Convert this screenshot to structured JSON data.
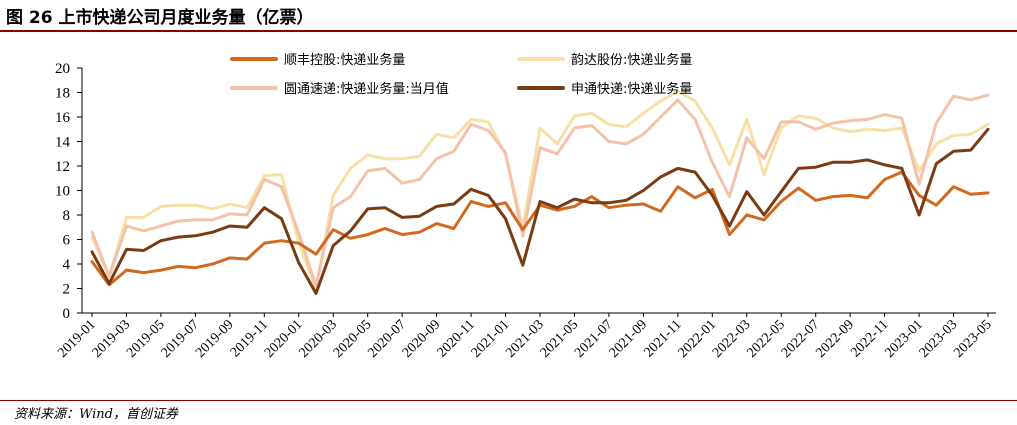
{
  "header": {
    "title": "图 26 上市快递公司月度业务量（亿票）"
  },
  "footer": {
    "source": "资料来源：Wind，首创证券"
  },
  "colors": {
    "rule": "#8b0000",
    "axis": "#000000"
  },
  "chart_data": {
    "type": "line",
    "title": "",
    "xlabel": "",
    "ylabel": "",
    "ylim": [
      0,
      20
    ],
    "yticks": [
      0,
      2,
      4,
      6,
      8,
      10,
      12,
      14,
      16,
      18,
      20
    ],
    "grid": false,
    "legend_position": "top",
    "x": [
      "2019-01",
      "2019-02",
      "2019-03",
      "2019-04",
      "2019-05",
      "2019-06",
      "2019-07",
      "2019-08",
      "2019-09",
      "2019-10",
      "2019-11",
      "2019-12",
      "2020-01",
      "2020-02",
      "2020-03",
      "2020-04",
      "2020-05",
      "2020-06",
      "2020-07",
      "2020-08",
      "2020-09",
      "2020-10",
      "2020-11",
      "2020-12",
      "2021-01",
      "2021-02",
      "2021-03",
      "2021-04",
      "2021-05",
      "2021-06",
      "2021-07",
      "2021-08",
      "2021-09",
      "2021-10",
      "2021-11",
      "2021-12",
      "2022-01",
      "2022-02",
      "2022-03",
      "2022-04",
      "2022-05",
      "2022-06",
      "2022-07",
      "2022-08",
      "2022-09",
      "2022-10",
      "2022-11",
      "2022-12",
      "2023-01",
      "2023-02",
      "2023-03",
      "2023-04",
      "2023-05"
    ],
    "xtick_labels": [
      "2019-01",
      "2019-03",
      "2019-05",
      "2019-07",
      "2019-09",
      "2019-11",
      "2020-01",
      "2020-03",
      "2020-05",
      "2020-07",
      "2020-09",
      "2020-11",
      "2021-01",
      "2021-03",
      "2021-05",
      "2021-07",
      "2021-09",
      "2021-11",
      "2022-01",
      "2022-03",
      "2022-05",
      "2022-07",
      "2022-09",
      "2022-11",
      "2023-01",
      "2023-03",
      "2023-05"
    ],
    "series": [
      {
        "name": "顺丰控股:快递业务量",
        "color": "#d2691e",
        "width": 3,
        "values": [
          4.2,
          2.3,
          3.5,
          3.3,
          3.5,
          3.8,
          3.7,
          4.0,
          4.5,
          4.4,
          5.7,
          5.9,
          5.7,
          4.8,
          6.8,
          6.1,
          6.4,
          6.9,
          6.4,
          6.6,
          7.3,
          6.9,
          9.1,
          8.7,
          9.0,
          6.8,
          8.8,
          8.4,
          8.7,
          9.5,
          8.6,
          8.8,
          8.9,
          8.3,
          10.3,
          9.4,
          10.1,
          6.4,
          8.0,
          7.6,
          9.1,
          10.2,
          9.2,
          9.5,
          9.6,
          9.4,
          10.9,
          11.5,
          9.6,
          8.8,
          10.3,
          9.7,
          9.8
        ]
      },
      {
        "name": "韵达股份:快递业务量",
        "color": "#f6e0a6",
        "width": 3,
        "values": [
          6.2,
          3.0,
          7.8,
          7.8,
          8.7,
          8.8,
          8.8,
          8.5,
          8.9,
          8.6,
          11.2,
          11.3,
          5.7,
          2.0,
          9.6,
          11.8,
          12.9,
          12.6,
          12.6,
          12.8,
          14.6,
          14.3,
          15.8,
          15.6,
          12.9,
          7.0,
          15.1,
          13.8,
          16.1,
          16.3,
          15.4,
          15.2,
          16.3,
          17.3,
          18.1,
          17.3,
          15.1,
          12.1,
          15.8,
          11.3,
          15.1,
          16.1,
          15.9,
          15.1,
          14.8,
          15.0,
          14.9,
          15.1,
          11.6,
          13.8,
          14.5,
          14.6,
          15.4
        ]
      },
      {
        "name": "圆通速递:快递业务量:当月值",
        "color": "#f4c2a8",
        "width": 3,
        "values": [
          6.6,
          3.0,
          7.1,
          6.7,
          7.1,
          7.5,
          7.6,
          7.6,
          8.1,
          8.0,
          10.9,
          10.3,
          6.5,
          2.2,
          8.6,
          9.5,
          11.6,
          11.8,
          10.6,
          10.9,
          12.6,
          13.2,
          15.4,
          14.9,
          13.1,
          6.3,
          13.5,
          13.0,
          15.1,
          15.3,
          14.0,
          13.8,
          14.6,
          16.0,
          17.4,
          15.8,
          12.3,
          9.5,
          14.3,
          12.6,
          15.6,
          15.6,
          15.0,
          15.5,
          15.7,
          15.8,
          16.2,
          15.9,
          10.5,
          15.5,
          17.7,
          17.4,
          17.8
        ]
      },
      {
        "name": "申通快递:快递业务量",
        "color": "#7a3b13",
        "width": 3,
        "values": [
          5.0,
          2.4,
          5.2,
          5.1,
          5.9,
          6.2,
          6.3,
          6.6,
          7.1,
          7.0,
          8.6,
          7.7,
          4.1,
          1.6,
          5.5,
          6.7,
          8.5,
          8.6,
          7.8,
          7.9,
          8.7,
          8.9,
          10.1,
          9.6,
          7.7,
          3.9,
          9.1,
          8.6,
          9.3,
          9.0,
          9.0,
          9.2,
          10.0,
          11.1,
          11.8,
          11.5,
          9.6,
          7.1,
          9.9,
          8.0,
          9.9,
          11.8,
          11.9,
          12.3,
          12.3,
          12.5,
          12.1,
          11.8,
          8.0,
          12.2,
          13.2,
          13.3,
          15.0
        ]
      }
    ]
  }
}
